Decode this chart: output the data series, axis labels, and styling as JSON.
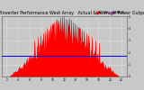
{
  "title": "Solar PV/Inverter Performance West Array   Actual & Average Power Output",
  "title_fontsize": 3.5,
  "bg_color": "#c8c8c8",
  "plot_bg_color": "#c8c8c8",
  "area_color": "#ff0000",
  "avg_line_color": "#0000ee",
  "avg_line_y": 0.34,
  "legend_actual_color": "#ff0000",
  "legend_actual_label": "ACTUAL",
  "legend_avg_color": "#ff00ff",
  "legend_avg_label": "AVERAGE",
  "xlim": [
    0,
    144
  ],
  "ylim": [
    0,
    1.0
  ],
  "ytick_labels": [
    "0",
    "1",
    "2",
    "3",
    "4",
    "5"
  ],
  "xtick_labels": [
    "2",
    "4",
    "6",
    "8",
    "10",
    "12",
    "14",
    "16",
    "18",
    "20",
    "22"
  ],
  "grid_color": "#ffffff",
  "avg_line_lw": 0.7
}
